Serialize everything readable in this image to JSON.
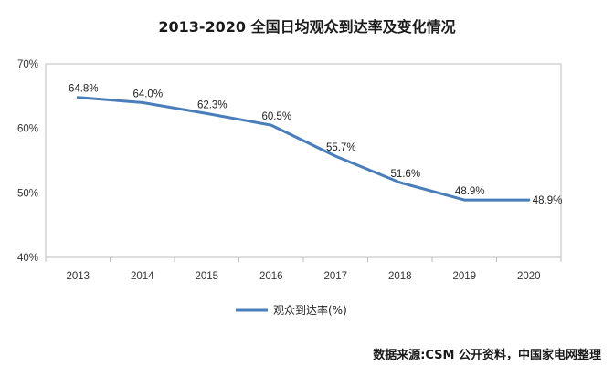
{
  "chart_data": {
    "type": "line",
    "title": "2013-2020 全国日均观众到达率及变化情况",
    "categories": [
      "2013",
      "2014",
      "2015",
      "2016",
      "2017",
      "2018",
      "2019",
      "2020"
    ],
    "series": [
      {
        "name": "观众到达率(%)",
        "values": [
          64.8,
          64.0,
          62.3,
          60.5,
          55.7,
          51.6,
          48.9,
          48.9
        ],
        "labels": [
          "64.8%",
          "64.0%",
          "62.3%",
          "60.5%",
          "55.7%",
          "51.6%",
          "48.9%",
          "48.9%"
        ],
        "color": "#4a7ebb"
      }
    ],
    "ylim": [
      40,
      70
    ],
    "yticks": [
      40,
      50,
      60,
      70
    ],
    "ytick_labels": [
      "40%",
      "50%",
      "60%",
      "70%"
    ],
    "xlabel": "",
    "ylabel": "",
    "grid": false,
    "legend_position": "bottom",
    "source": "数据来源:CSM 公开资料，中国家电网整理"
  }
}
